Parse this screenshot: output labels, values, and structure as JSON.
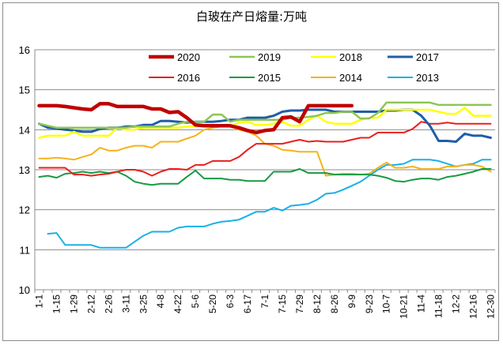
{
  "chart_data": {
    "type": "line",
    "title": "白玻在产日熔量:万吨",
    "ylim": [
      10,
      16
    ],
    "yticks": [
      "10",
      "11",
      "12",
      "13",
      "14",
      "15",
      "16"
    ],
    "grid": true,
    "legend_position": "top",
    "x_count": 53,
    "x_tick_labels": [
      "1-1",
      "1-15",
      "1-29",
      "2-12",
      "2-26",
      "3-11",
      "3-25",
      "4-8",
      "4-22",
      "5-6",
      "5-20",
      "6-3",
      "6-17",
      "7-1",
      "7-15",
      "7-29",
      "8-12",
      "8-26",
      "9-9",
      "9-23",
      "10-7",
      "10-21",
      "11-4",
      "11-18",
      "12-2",
      "12-16",
      "12-30"
    ],
    "series": [
      {
        "name": "2020",
        "color": "#c00000",
        "width": 4.5,
        "values": [
          14.6,
          14.6,
          14.6,
          14.58,
          14.55,
          14.52,
          14.5,
          14.65,
          14.65,
          14.58,
          14.58,
          14.58,
          14.58,
          14.52,
          14.52,
          14.43,
          14.45,
          14.3,
          14.12,
          14.1,
          14.1,
          14.1,
          14.1,
          14.05,
          13.98,
          13.93,
          13.98,
          14.0,
          14.3,
          14.32,
          14.2,
          14.6,
          14.6,
          14.6,
          14.6,
          14.6,
          14.6
        ]
      },
      {
        "name": "2019",
        "color": "#8dc653",
        "width": 2.5,
        "values": [
          14.15,
          14.1,
          14.05,
          14.05,
          14.05,
          14.05,
          14.05,
          14.05,
          14.05,
          14.05,
          14.05,
          14.08,
          14.08,
          14.08,
          14.08,
          14.08,
          14.15,
          14.2,
          14.2,
          14.2,
          14.38,
          14.38,
          14.2,
          14.25,
          14.25,
          14.25,
          14.25,
          14.25,
          14.25,
          14.3,
          14.3,
          14.32,
          14.35,
          14.42,
          14.42,
          14.45,
          14.45,
          14.28,
          14.28,
          14.42,
          14.68,
          14.68,
          14.68,
          14.68,
          14.68,
          14.68,
          14.62,
          14.62,
          14.62,
          14.62,
          14.62,
          14.62,
          14.62
        ]
      },
      {
        "name": "2018",
        "color": "#ffff00",
        "width": 2.5,
        "values": [
          13.8,
          13.85,
          13.85,
          13.85,
          13.95,
          13.85,
          13.85,
          13.85,
          13.85,
          14.05,
          14.0,
          14.0,
          14.05,
          14.05,
          14.05,
          14.05,
          14.05,
          14.08,
          14.08,
          14.1,
          14.1,
          14.08,
          14.08,
          14.18,
          14.2,
          14.12,
          14.12,
          14.15,
          14.2,
          14.1,
          14.1,
          14.25,
          14.35,
          14.2,
          14.15,
          14.15,
          14.15,
          14.25,
          14.3,
          14.3,
          14.5,
          14.5,
          14.5,
          14.5,
          14.5,
          14.5,
          14.45,
          14.4,
          14.4,
          14.55,
          14.35,
          14.35,
          14.35
        ]
      },
      {
        "name": "2017",
        "color": "#1f5ea8",
        "width": 3,
        "values": [
          14.15,
          14.05,
          14.03,
          14.0,
          13.98,
          13.95,
          13.95,
          14.02,
          14.05,
          14.05,
          14.08,
          14.08,
          14.12,
          14.12,
          14.22,
          14.22,
          14.2,
          14.18,
          14.2,
          14.2,
          14.2,
          14.22,
          14.25,
          14.25,
          14.3,
          14.3,
          14.3,
          14.35,
          14.45,
          14.48,
          14.48,
          14.5,
          14.5,
          14.5,
          14.45,
          14.45,
          14.45,
          14.45,
          14.45,
          14.45,
          14.48,
          14.48,
          14.5,
          14.5,
          14.35,
          14.1,
          13.72,
          13.72,
          13.7,
          13.9,
          13.85,
          13.85,
          13.8
        ]
      },
      {
        "name": "2016",
        "color": "#e8201e",
        "width": 2,
        "values": [
          13.05,
          13.05,
          13.05,
          13.05,
          12.88,
          12.88,
          12.85,
          12.88,
          12.9,
          12.95,
          13.0,
          13.0,
          12.95,
          12.85,
          12.95,
          13.02,
          13.02,
          13.0,
          13.12,
          13.12,
          13.22,
          13.22,
          13.22,
          13.32,
          13.5,
          13.65,
          13.65,
          13.65,
          13.65,
          13.7,
          13.75,
          13.7,
          13.72,
          13.7,
          13.7,
          13.7,
          13.75,
          13.8,
          13.8,
          13.93,
          13.93,
          13.93,
          13.93,
          14.02,
          14.2,
          14.15,
          14.15,
          14.18,
          14.15,
          14.15,
          14.15,
          14.15,
          14.15
        ]
      },
      {
        "name": "2015",
        "color": "#189a43",
        "width": 2,
        "values": [
          12.82,
          12.85,
          12.8,
          12.9,
          12.92,
          12.95,
          12.92,
          12.95,
          12.92,
          12.95,
          12.85,
          12.7,
          12.65,
          12.62,
          12.65,
          12.65,
          12.65,
          12.82,
          12.98,
          12.78,
          12.78,
          12.78,
          12.75,
          12.75,
          12.72,
          12.72,
          12.72,
          12.95,
          12.95,
          12.95,
          13.02,
          12.92,
          12.92,
          12.92,
          12.88,
          12.88,
          12.88,
          12.88,
          12.88,
          12.85,
          12.8,
          12.72,
          12.7,
          12.75,
          12.78,
          12.78,
          12.75,
          12.82,
          12.85,
          12.9,
          12.95,
          13.02,
          13.02
        ]
      },
      {
        "name": "2014",
        "color": "#f5b31a",
        "width": 2,
        "values": [
          13.28,
          13.28,
          13.3,
          13.28,
          13.25,
          13.32,
          13.38,
          13.55,
          13.48,
          13.48,
          13.55,
          13.6,
          13.6,
          13.55,
          13.7,
          13.7,
          13.7,
          13.78,
          13.85,
          14.0,
          14.05,
          14.08,
          14.08,
          14.0,
          13.95,
          13.85,
          13.65,
          13.6,
          13.5,
          13.48,
          13.45,
          13.45,
          13.45,
          12.85,
          12.88,
          12.9,
          12.9,
          12.88,
          12.9,
          13.05,
          13.18,
          13.05,
          13.05,
          13.08,
          13.02,
          13.02,
          13.02,
          13.08,
          13.08,
          13.12,
          13.12,
          13.08,
          12.95
        ]
      },
      {
        "name": "2013",
        "color": "#1ab0e8",
        "width": 2,
        "values": [
          null,
          11.4,
          11.42,
          11.12,
          11.12,
          11.12,
          11.12,
          11.05,
          11.05,
          11.05,
          11.05,
          11.2,
          11.35,
          11.45,
          11.45,
          11.45,
          11.55,
          11.58,
          11.58,
          11.58,
          11.65,
          11.7,
          11.72,
          11.75,
          11.85,
          11.95,
          11.95,
          12.05,
          11.98,
          12.1,
          12.12,
          12.15,
          12.25,
          12.4,
          12.42,
          12.5,
          12.6,
          12.7,
          12.85,
          13.0,
          13.12,
          13.12,
          13.15,
          13.25,
          13.25,
          13.25,
          13.22,
          13.15,
          13.08,
          13.12,
          13.15,
          13.25,
          13.25
        ]
      }
    ]
  }
}
